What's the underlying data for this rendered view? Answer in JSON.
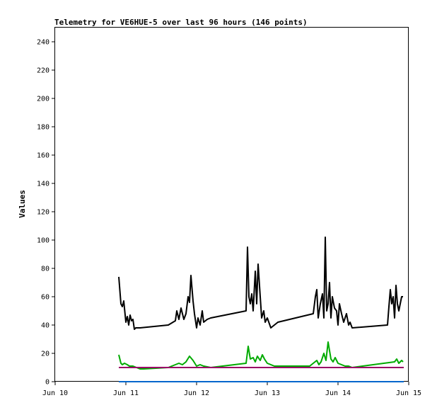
{
  "chart_data": {
    "type": "line",
    "title": "Telemetry for VE6HUE-5 over last 96 hours (146 points)",
    "xlabel": "",
    "ylabel": "Values",
    "xlim": [
      10,
      15
    ],
    "ylim": [
      0,
      250
    ],
    "x_ticks": [
      {
        "value": 10,
        "label": "Jun 10"
      },
      {
        "value": 11,
        "label": "Jun 11"
      },
      {
        "value": 12,
        "label": "Jun 12"
      },
      {
        "value": 13,
        "label": "Jun 13"
      },
      {
        "value": 14,
        "label": "Jun 14"
      },
      {
        "value": 15,
        "label": "Jun 15"
      }
    ],
    "y_ticks": [
      0,
      20,
      40,
      60,
      80,
      100,
      120,
      140,
      160,
      180,
      200,
      220,
      240
    ],
    "grid": false,
    "series": [
      {
        "color": "#000000",
        "x": [
          10.9,
          10.93,
          10.95,
          10.97,
          11.0,
          11.02,
          11.04,
          11.06,
          11.08,
          11.1,
          11.12,
          11.14,
          11.16,
          11.18,
          11.2,
          11.6,
          11.7,
          11.72,
          11.75,
          11.78,
          11.82,
          11.85,
          11.88,
          11.9,
          11.92,
          11.95,
          11.97,
          12.0,
          12.02,
          12.05,
          12.08,
          12.1,
          12.15,
          12.2,
          12.7,
          12.72,
          12.74,
          12.76,
          12.78,
          12.8,
          12.83,
          12.85,
          12.87,
          12.9,
          12.92,
          12.95,
          12.97,
          13.0,
          13.05,
          13.15,
          13.65,
          13.68,
          13.7,
          13.72,
          13.75,
          13.78,
          13.8,
          13.82,
          13.84,
          13.86,
          13.88,
          13.9,
          13.92,
          13.95,
          13.98,
          14.0,
          14.02,
          14.05,
          14.08,
          14.1,
          14.12,
          14.15,
          14.17,
          14.2,
          14.7,
          14.72,
          14.74,
          14.76,
          14.78,
          14.8,
          14.82,
          14.84,
          14.86,
          14.88,
          14.9,
          14.92
        ],
        "values": [
          74,
          55,
          53,
          57,
          42,
          46,
          40,
          47,
          43,
          44,
          37,
          38,
          38,
          38,
          38,
          40,
          43,
          50,
          44,
          52,
          44,
          48,
          60,
          56,
          75,
          57,
          48,
          38,
          45,
          40,
          50,
          42,
          44,
          45,
          50,
          95,
          60,
          55,
          62,
          50,
          78,
          55,
          83,
          60,
          45,
          50,
          42,
          45,
          38,
          42,
          48,
          60,
          65,
          45,
          55,
          62,
          45,
          102,
          50,
          55,
          70,
          45,
          60,
          52,
          50,
          40,
          55,
          48,
          42,
          45,
          48,
          40,
          42,
          38,
          40,
          53,
          65,
          55,
          60,
          45,
          68,
          55,
          50,
          55,
          60,
          60
        ]
      },
      {
        "color": "#00aa00",
        "x": [
          10.9,
          10.93,
          10.95,
          10.98,
          11.02,
          11.05,
          11.1,
          11.15,
          11.2,
          11.25,
          11.6,
          11.7,
          11.75,
          11.8,
          11.85,
          11.9,
          11.95,
          12.0,
          12.05,
          12.1,
          12.2,
          12.7,
          12.73,
          12.76,
          12.8,
          12.83,
          12.86,
          12.9,
          12.93,
          12.96,
          13.0,
          13.1,
          13.6,
          13.65,
          13.7,
          13.73,
          13.76,
          13.8,
          13.83,
          13.86,
          13.9,
          13.93,
          13.96,
          14.0,
          14.05,
          14.1,
          14.15,
          14.2,
          14.8,
          14.83,
          14.86,
          14.9,
          14.92
        ],
        "values": [
          19,
          13,
          12,
          13,
          12,
          11,
          11,
          10,
          9,
          9,
          10,
          12,
          13,
          12,
          14,
          18,
          15,
          11,
          12,
          11,
          10,
          13,
          25,
          16,
          17,
          14,
          18,
          15,
          19,
          16,
          13,
          11,
          11,
          13,
          15,
          12,
          14,
          20,
          15,
          28,
          16,
          14,
          17,
          13,
          12,
          11,
          11,
          10,
          14,
          16,
          13,
          15,
          14
        ]
      },
      {
        "color": "#990066",
        "x": [
          10.9,
          14.93
        ],
        "values": [
          10,
          10
        ]
      },
      {
        "color": "#0066cc",
        "x": [
          10.9,
          14.93
        ],
        "values": [
          0,
          0
        ]
      }
    ]
  }
}
